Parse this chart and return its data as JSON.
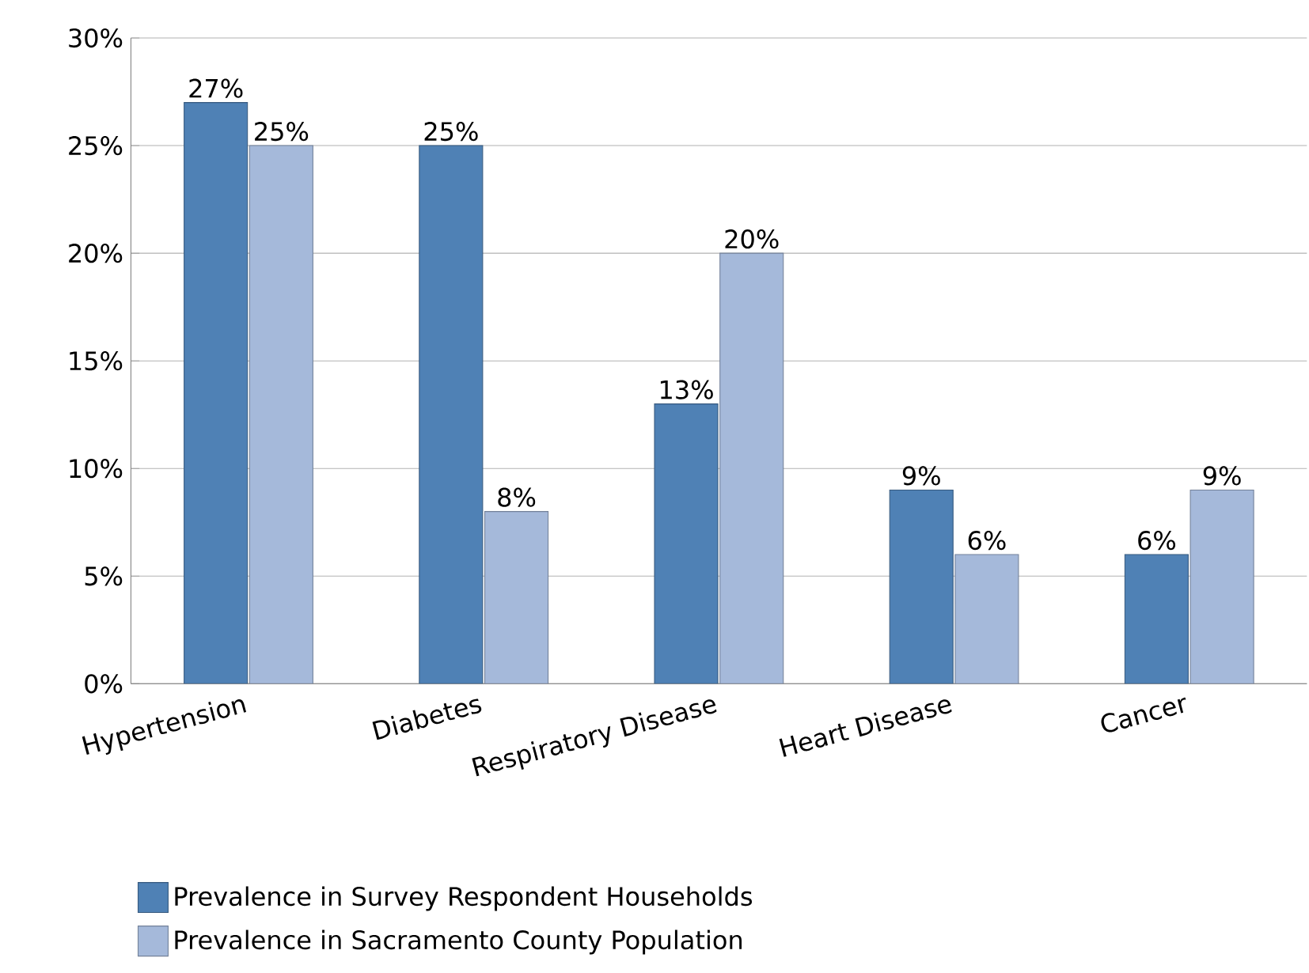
{
  "chart_data": {
    "type": "bar",
    "categories": [
      "Hypertension",
      "Diabetes",
      "Respiratory Disease",
      "Heart Disease",
      "Cancer"
    ],
    "series": [
      {
        "name": "Prevalence in Survey Respondent Households",
        "color": "#4f81b5",
        "values": [
          27,
          25,
          13,
          9,
          6
        ],
        "value_labels": [
          "27%",
          "25%",
          "13%",
          "9%",
          "6%"
        ]
      },
      {
        "name": "Prevalence in Sacramento County Population",
        "color": "#a5b9da",
        "values": [
          25,
          8,
          20,
          6,
          9
        ],
        "value_labels": [
          "25%",
          "8%",
          "20%",
          "6%",
          "9%"
        ]
      }
    ],
    "ylim": [
      0,
      30
    ],
    "yticks": [
      {
        "value": 0,
        "label": "0%"
      },
      {
        "value": 5,
        "label": "5%"
      },
      {
        "value": 10,
        "label": "10%"
      },
      {
        "value": 15,
        "label": "15%"
      },
      {
        "value": 20,
        "label": "20%"
      },
      {
        "value": 25,
        "label": "25%"
      },
      {
        "value": 30,
        "label": "30%"
      }
    ],
    "grid": "y",
    "legend": "bottom"
  }
}
